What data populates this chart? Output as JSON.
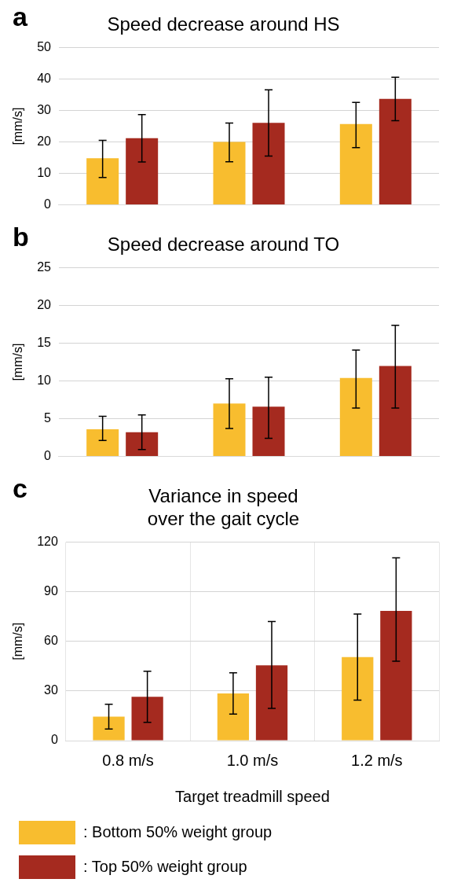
{
  "chart_data": [
    {
      "type": "bar",
      "title": "Speed decrease around HS",
      "ylabel": "[mm/s]",
      "annotations": [
        "a"
      ],
      "categories": [
        null,
        null,
        null
      ],
      "ylim": [
        0,
        50
      ],
      "yticks": [
        0,
        10,
        20,
        30,
        40,
        50
      ],
      "grid": "y",
      "legend": false,
      "tick_labels": "y",
      "series": [
        {
          "color": "#f8bd2f",
          "values": [
            14.8,
            20,
            25.7
          ],
          "errors": [
            [
              8.7,
              20.5
            ],
            [
              13.7,
              26
            ],
            [
              18.2,
              32.6
            ]
          ]
        },
        {
          "color": "#a52a1f",
          "values": [
            21.2,
            26.1,
            33.7
          ],
          "errors": [
            [
              13.6,
              28.7
            ],
            [
              15.5,
              36.6
            ],
            [
              26.8,
              40.6
            ]
          ]
        }
      ]
    },
    {
      "type": "bar",
      "title": "Speed decrease around TO",
      "ylabel": "[mm/s]",
      "annotations": [
        "b"
      ],
      "categories": [
        null,
        null,
        null
      ],
      "ylim": [
        0,
        25
      ],
      "yticks": [
        0,
        5,
        10,
        15,
        20,
        25
      ],
      "grid": "y",
      "legend": false,
      "tick_labels": "y",
      "series": [
        {
          "color": "#f8bd2f",
          "values": [
            3.6,
            7,
            10.4
          ],
          "errors": [
            [
              2.1,
              5.3
            ],
            [
              3.7,
              10.3
            ],
            [
              6.4,
              14.1
            ]
          ]
        },
        {
          "color": "#a52a1f",
          "values": [
            3.2,
            6.6,
            12
          ],
          "errors": [
            [
              0.9,
              5.5
            ],
            [
              2.4,
              10.5
            ],
            [
              6.4,
              17.4
            ]
          ]
        }
      ]
    },
    {
      "type": "bar",
      "title": "Variance in speed\nover the gait cycle",
      "ylabel": "[mm/s]",
      "xlabel": "Target treadmill speed",
      "annotations": [
        "c"
      ],
      "categories": [
        "0.8 m/s",
        "1.0 m/s",
        "1.2 m/s"
      ],
      "ylim": [
        0,
        120
      ],
      "yticks": [
        0,
        30,
        60,
        90,
        120
      ],
      "grid": true,
      "legend": "bottom",
      "series": [
        {
          "name": ": Bottom 50% weight group",
          "color": "#f8bd2f",
          "values": [
            14.5,
            28.5,
            50.5
          ],
          "errors": [
            [
              7,
              22
            ],
            [
              16,
              41
            ],
            [
              24.5,
              76.5
            ]
          ]
        },
        {
          "name": ": Top 50% weight group",
          "color": "#a52a1f",
          "values": [
            26.5,
            45.5,
            78.5
          ],
          "errors": [
            [
              11,
              42
            ],
            [
              19.5,
              72
            ],
            [
              48,
              110.5
            ]
          ]
        }
      ]
    }
  ]
}
